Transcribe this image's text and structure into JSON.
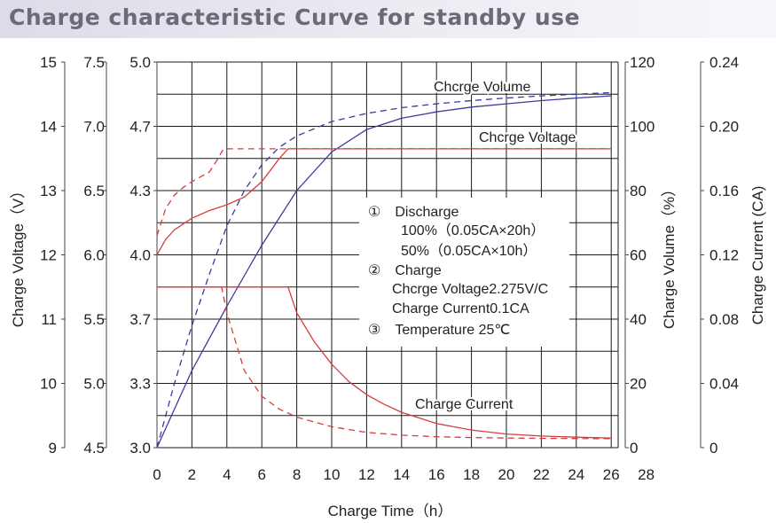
{
  "title": "Charge characteristic Curve for standby use",
  "chart_data": {
    "type": "line",
    "title": "Charge characteristic Curve for standby use",
    "xlabel": "Charge Time（h）",
    "xlim": [
      0,
      26
    ],
    "x_ticks": [
      "0",
      "2",
      "4",
      "6",
      "8",
      "10",
      "12",
      "14",
      "16",
      "18",
      "20",
      "22",
      "24",
      "26",
      "28"
    ],
    "grid": true,
    "left_axes": [
      {
        "label": "Charge Voltage（V）",
        "ticks": [
          "9",
          "10",
          "11",
          "12",
          "13",
          "14",
          "15"
        ]
      },
      {
        "label": "",
        "ticks": [
          "4.5",
          "5.0",
          "5.5",
          "6.0",
          "6.5",
          "7.0",
          "7.5"
        ]
      },
      {
        "label": "",
        "ticks": [
          "3.0",
          "3.3",
          "3.7",
          "4.0",
          "4.3",
          "4.7",
          "5.0"
        ]
      }
    ],
    "right_axes": [
      {
        "label": "Charge Volume（%）",
        "ticks": [
          "0",
          "20",
          "40",
          "60",
          "80",
          "100",
          "120"
        ],
        "ylim": [
          0,
          120
        ]
      },
      {
        "label": "Charge Current (CA)",
        "ticks": [
          "0",
          "0.04",
          "0.08",
          "0.12",
          "0.16",
          "0.20",
          "0.24"
        ],
        "ylim": [
          0,
          0.24
        ]
      }
    ],
    "curve_labels": [
      "Chcrge Volume",
      "Chcrge Voltage",
      "Charge Current"
    ],
    "annotation_lines": [
      "①　Discharge",
      "100%（0.05CA×20h）",
      "50%（0.05CA×10h）",
      "②　Charge",
      "Chcrge Voltage2.275V/C",
      "Charge Current0.1CA",
      "③　Temperature 25℃"
    ],
    "series": [
      {
        "quantity": "Charge Volume (%)",
        "discharge": "100%",
        "color": "#3a3a9c",
        "style": "solid",
        "x": [
          0,
          2,
          4,
          6,
          8,
          10,
          12,
          14,
          16,
          18,
          20,
          22,
          24,
          26
        ],
        "y": [
          0,
          24,
          44,
          63,
          80,
          92,
          99,
          102.5,
          104.5,
          106,
          107,
          108,
          108.8,
          109.5
        ]
      },
      {
        "quantity": "Charge Volume (%)",
        "discharge": "50%",
        "color": "#3a3a9c",
        "style": "dashed",
        "x": [
          0,
          1,
          2,
          3,
          4,
          5,
          6,
          7,
          8,
          10,
          12,
          14,
          16,
          18,
          20,
          22,
          24,
          26
        ],
        "y": [
          0,
          20,
          38,
          54,
          69,
          80,
          88,
          93.5,
          97,
          101.5,
          104,
          105.8,
          107,
          108,
          108.8,
          109.5,
          110,
          110.5
        ]
      },
      {
        "quantity": "Charge Voltage (V/cell)",
        "discharge": "100%",
        "color": "#d83c3c",
        "style": "solid",
        "x": [
          0,
          0.5,
          1,
          2,
          3,
          4,
          5,
          6,
          7,
          7.5,
          26
        ],
        "y": [
          4.0,
          4.08,
          4.13,
          4.19,
          4.23,
          4.26,
          4.3,
          4.38,
          4.5,
          4.55,
          4.55
        ]
      },
      {
        "quantity": "Charge Voltage (V/cell)",
        "discharge": "50%",
        "color": "#d83c3c",
        "style": "dashed",
        "x": [
          0,
          0.5,
          1,
          1.5,
          2,
          3,
          3.5,
          3.8,
          26
        ],
        "y": [
          4.1,
          4.24,
          4.31,
          4.35,
          4.38,
          4.43,
          4.5,
          4.55,
          4.55
        ]
      },
      {
        "quantity": "Charge Current (CA)",
        "discharge": "100%",
        "color": "#d83c3c",
        "style": "solid",
        "x": [
          0,
          7.5,
          8,
          9,
          10,
          11,
          12,
          13,
          14,
          16,
          18,
          20,
          22,
          24,
          26
        ],
        "y": [
          0.1,
          0.1,
          0.084,
          0.066,
          0.052,
          0.041,
          0.033,
          0.027,
          0.022,
          0.015,
          0.011,
          0.0085,
          0.0072,
          0.0065,
          0.006
        ]
      },
      {
        "quantity": "Charge Current (CA)",
        "discharge": "50%",
        "color": "#d83c3c",
        "style": "dashed",
        "x": [
          0,
          3.7,
          4,
          5,
          6,
          7,
          8,
          10,
          12,
          14,
          16,
          18,
          20,
          22,
          24,
          26
        ],
        "y": [
          0.1,
          0.1,
          0.084,
          0.048,
          0.032,
          0.024,
          0.019,
          0.013,
          0.0095,
          0.0078,
          0.0068,
          0.0063,
          0.006,
          0.0058,
          0.0057,
          0.0056
        ]
      }
    ]
  }
}
